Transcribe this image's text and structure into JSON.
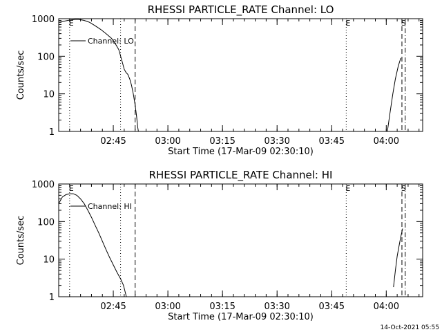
{
  "footer": {
    "timestamp": "14-Oct-2021 05:55"
  },
  "chart_data": [
    {
      "type": "line",
      "title": "RHESSI PARTICLE_RATE Channel: LO",
      "xlabel": "Start Time (17-Mar-09 02:30:10)",
      "ylabel": "Counts/sec",
      "yscale": "log",
      "ylim": [
        1,
        1000
      ],
      "xlim_minutes": [
        0,
        100
      ],
      "xticks": [
        "02:45",
        "03:00",
        "03:15",
        "03:30",
        "03:45",
        "04:00"
      ],
      "yticks": [
        "1",
        "10",
        "100",
        "1000"
      ],
      "legend": {
        "label": "Channel: LO",
        "placement": "top-left"
      },
      "markers": [
        {
          "label": "E",
          "x": 3.0,
          "style": "dotted"
        },
        {
          "label": "",
          "x": 17.0,
          "style": "dotted"
        },
        {
          "label": "",
          "x": 21.0,
          "style": "dashed"
        },
        {
          "label": "E",
          "x": 79.0,
          "style": "dotted"
        },
        {
          "label": "S",
          "x": 94.3,
          "style": "dashed"
        },
        {
          "label": "",
          "x": 95.2,
          "style": "dashdot"
        }
      ],
      "series": [
        {
          "name": "Channel: LO",
          "segments": [
            [
              [
                0,
                800
              ],
              [
                1.5,
                860
              ],
              [
                3,
                920
              ],
              [
                4.5,
                960
              ],
              [
                5.5,
                960
              ],
              [
                7,
                900
              ],
              [
                8.5,
                800
              ],
              [
                10,
                650
              ],
              [
                11.5,
                520
              ],
              [
                13,
                400
              ],
              [
                14.5,
                300
              ],
              [
                15.5,
                220
              ],
              [
                16.5,
                150
              ],
              [
                17.3,
                80
              ],
              [
                18,
                45
              ],
              [
                18.5,
                37
              ],
              [
                19,
                33
              ],
              [
                19.5,
                25
              ],
              [
                20,
                17
              ],
              [
                20.5,
                10
              ],
              [
                21,
                5
              ],
              [
                21.4,
                2.5
              ],
              [
                21.7,
                1.3
              ],
              [
                21.9,
                1
              ]
            ],
            [
              [
                90.3,
                1
              ],
              [
                91,
                3
              ],
              [
                91.8,
                10
              ],
              [
                92.5,
                25
              ],
              [
                93.3,
                55
              ],
              [
                94,
                90
              ]
            ]
          ]
        }
      ]
    },
    {
      "type": "line",
      "title": "RHESSI PARTICLE_RATE Channel: HI",
      "xlabel": "Start Time (17-Mar-09 02:30:10)",
      "ylabel": "Counts/sec",
      "yscale": "log",
      "ylim": [
        1,
        1000
      ],
      "xlim_minutes": [
        0,
        100
      ],
      "xticks": [
        "02:45",
        "03:00",
        "03:15",
        "03:30",
        "03:45",
        "04:00"
      ],
      "yticks": [
        "1",
        "10",
        "100",
        "1000"
      ],
      "legend": {
        "label": "Channel: HI",
        "placement": "top-left"
      },
      "markers": [
        {
          "label": "E",
          "x": 3.0,
          "style": "dotted"
        },
        {
          "label": "",
          "x": 17.0,
          "style": "dotted"
        },
        {
          "label": "",
          "x": 21.0,
          "style": "dashed"
        },
        {
          "label": "E",
          "x": 79.0,
          "style": "dotted"
        },
        {
          "label": "S",
          "x": 94.3,
          "style": "dashed"
        },
        {
          "label": "",
          "x": 95.2,
          "style": "dashdot"
        }
      ],
      "series": [
        {
          "name": "Channel: HI",
          "segments": [
            [
              [
                0,
                300
              ],
              [
                1,
                450
              ],
              [
                2,
                520
              ],
              [
                3,
                550
              ],
              [
                4,
                550
              ],
              [
                5,
                500
              ],
              [
                6,
                400
              ],
              [
                7,
                300
              ],
              [
                8,
                200
              ],
              [
                9,
                130
              ],
              [
                10,
                80
              ],
              [
                11,
                50
              ],
              [
                12,
                30
              ],
              [
                13,
                18
              ],
              [
                14,
                11
              ],
              [
                15,
                7
              ],
              [
                16,
                4.5
              ],
              [
                17,
                3
              ],
              [
                17.8,
                2
              ],
              [
                18.3,
                1.3
              ],
              [
                18.6,
                1
              ]
            ],
            [
              [
                92,
                1.8
              ],
              [
                92.5,
                5
              ],
              [
                93,
                12
              ],
              [
                93.5,
                22
              ],
              [
                94,
                40
              ],
              [
                94.5,
                65
              ]
            ]
          ]
        }
      ]
    }
  ]
}
